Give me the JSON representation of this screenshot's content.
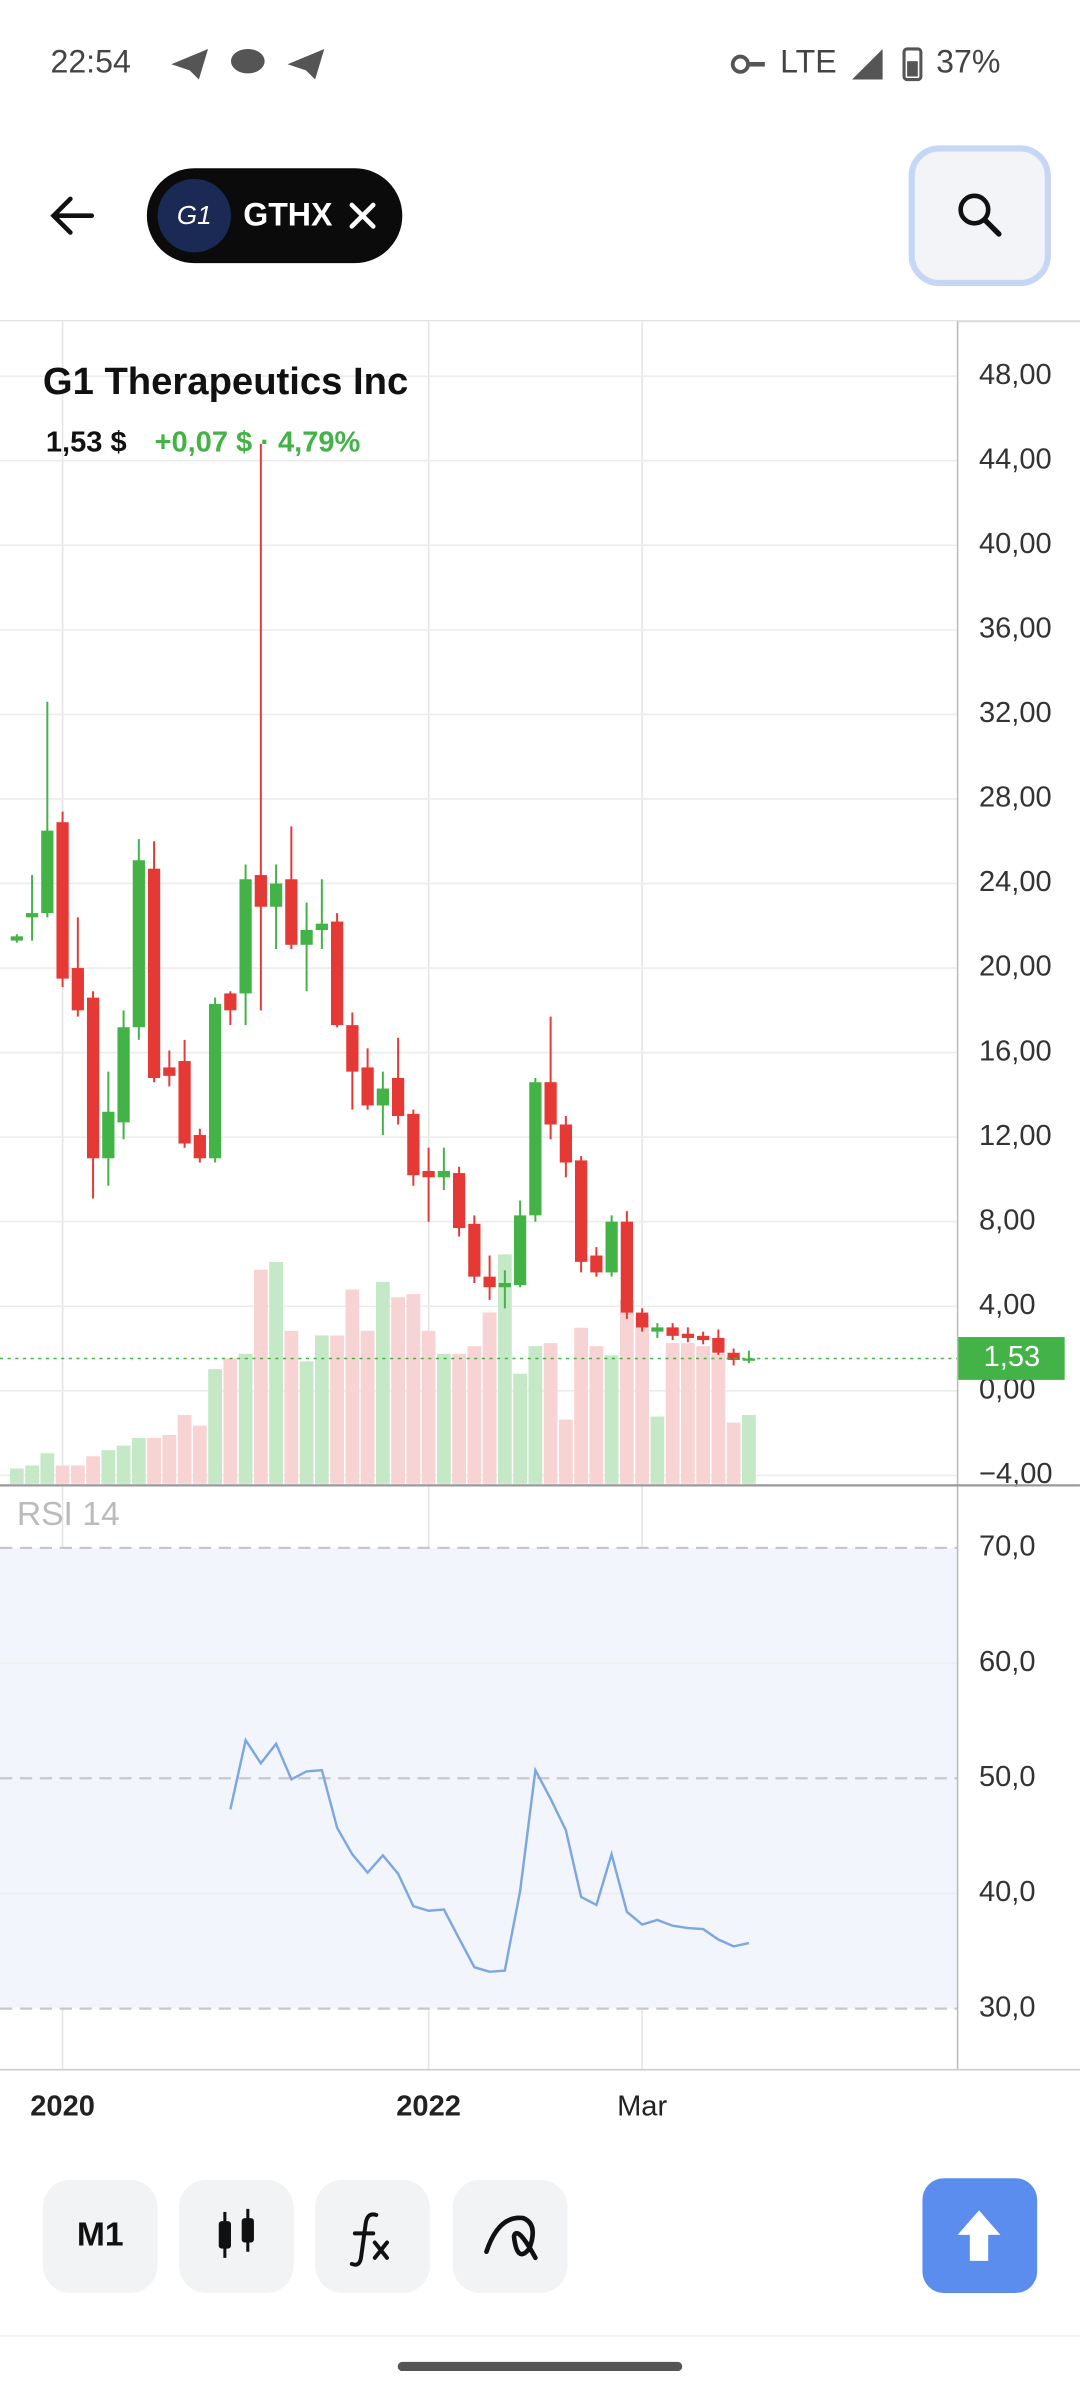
{
  "status_bar": {
    "time": "22:54",
    "network": "LTE",
    "battery": "37%"
  },
  "header": {
    "logo_text": "G1",
    "ticker": "GTHX"
  },
  "toolbar": {
    "period": "M1"
  },
  "chart_data": [
    {
      "type": "candlestick",
      "title": "G1 Therapeutics Inc",
      "price_text": "1,53 $",
      "change_text": "+0,07 $ · 4,79%",
      "categories": [
        null,
        null,
        null,
        "2020",
        null,
        null,
        null,
        null,
        null,
        null,
        null,
        null,
        null,
        null,
        null,
        null,
        null,
        null,
        null,
        null,
        null,
        null,
        null,
        null,
        null,
        null,
        null,
        "2022",
        null,
        null,
        null,
        null,
        null,
        null,
        null,
        null,
        null,
        null,
        null,
        null,
        null,
        "Mar",
        null,
        null,
        null,
        null,
        null,
        null,
        null
      ],
      "open": [
        21.3,
        22.4,
        22.6,
        26.9,
        20.0,
        18.6,
        11.0,
        12.7,
        17.2,
        24.7,
        15.3,
        15.6,
        12.1,
        11.0,
        18.8,
        18.8,
        24.4,
        22.9,
        24.2,
        21.1,
        21.8,
        22.2,
        17.3,
        15.3,
        13.5,
        14.8,
        13.1,
        10.4,
        10.1,
        10.3,
        7.9,
        5.4,
        4.9,
        5.0,
        8.3,
        14.6,
        12.6,
        10.9,
        6.4,
        5.6,
        8.0,
        3.7,
        2.8,
        3.0,
        2.7,
        2.6,
        2.5,
        1.8,
        1.46
      ],
      "high": [
        21.6,
        24.4,
        32.6,
        27.4,
        22.4,
        18.9,
        15.1,
        18.0,
        26.1,
        26.0,
        16.1,
        16.6,
        12.4,
        18.6,
        18.9,
        24.9,
        44.8,
        24.9,
        26.7,
        23.1,
        24.2,
        22.6,
        17.9,
        16.2,
        15.1,
        16.7,
        13.3,
        11.5,
        11.5,
        10.6,
        8.3,
        6.4,
        5.7,
        9.0,
        14.8,
        17.7,
        13.0,
        11.1,
        6.8,
        8.3,
        8.5,
        3.9,
        3.2,
        3.2,
        3.0,
        2.8,
        2.9,
        2.0,
        1.9
      ],
      "low": [
        21.2,
        21.3,
        22.4,
        19.1,
        17.7,
        9.1,
        9.7,
        11.9,
        16.6,
        14.6,
        14.4,
        11.5,
        10.8,
        10.8,
        17.3,
        17.3,
        18.0,
        20.9,
        20.9,
        18.9,
        20.9,
        17.2,
        13.3,
        13.3,
        12.1,
        12.6,
        9.7,
        8.0,
        9.5,
        7.3,
        5.1,
        4.3,
        3.9,
        4.9,
        8.0,
        11.9,
        10.1,
        5.6,
        5.4,
        5.4,
        3.4,
        2.8,
        2.5,
        2.4,
        2.3,
        2.2,
        1.7,
        1.2,
        1.3
      ],
      "close": [
        21.5,
        22.6,
        26.5,
        19.5,
        18.0,
        11.0,
        13.2,
        17.2,
        25.1,
        14.8,
        14.9,
        11.7,
        11.0,
        18.3,
        18.0,
        24.2,
        22.9,
        24.0,
        21.1,
        21.8,
        22.1,
        17.3,
        15.1,
        13.5,
        14.3,
        13.0,
        10.2,
        10.1,
        10.4,
        7.7,
        5.4,
        4.9,
        5.1,
        8.3,
        14.6,
        12.6,
        10.8,
        6.1,
        5.6,
        8.0,
        3.7,
        3.0,
        3.0,
        2.6,
        2.5,
        2.4,
        1.8,
        1.46,
        1.53
      ],
      "volume": [
        10,
        12,
        20,
        12,
        12,
        18,
        22,
        25,
        30,
        30,
        32,
        45,
        38,
        75,
        82,
        85,
        140,
        145,
        100,
        80,
        97,
        97,
        127,
        100,
        132,
        122,
        124,
        100,
        85,
        85,
        90,
        112,
        150,
        72,
        90,
        92,
        42,
        102,
        90,
        84,
        120,
        110,
        44,
        92,
        92,
        90,
        85,
        40,
        45
      ],
      "up_color": "#43b347",
      "down_color": "#e53935",
      "up_volume_color": "#c5e8c6",
      "down_volume_color": "#f8d3d3",
      "ylim": [
        -4.4,
        50.6
      ],
      "yticks": [
        {
          "value": 48,
          "label": "48,00"
        },
        {
          "value": 44,
          "label": "44,00"
        },
        {
          "value": 40,
          "label": "40,00"
        },
        {
          "value": 36,
          "label": "36,00"
        },
        {
          "value": 32,
          "label": "32,00"
        },
        {
          "value": 28,
          "label": "28,00"
        },
        {
          "value": 24,
          "label": "24,00"
        },
        {
          "value": 20,
          "label": "20,00"
        },
        {
          "value": 16,
          "label": "16,00"
        },
        {
          "value": 12,
          "label": "12,00"
        },
        {
          "value": 8,
          "label": "8,00"
        },
        {
          "value": 4,
          "label": "4,00"
        },
        {
          "value": 0,
          "label": "0,00"
        },
        {
          "value": -4,
          "label": "−4,00"
        }
      ],
      "last_price": {
        "value": 1.53,
        "label": "1,53"
      },
      "grid": true
    },
    {
      "type": "line",
      "title": "RSI 14",
      "color": "#7ea6e0",
      "values": [
        null,
        null,
        null,
        null,
        null,
        null,
        null,
        null,
        null,
        null,
        null,
        null,
        null,
        null,
        47.3,
        53.3,
        51.3,
        53.0,
        49.9,
        50.6,
        50.7,
        45.7,
        43.4,
        41.8,
        43.3,
        41.7,
        38.9,
        38.5,
        38.6,
        36.1,
        33.6,
        33.2,
        33.3,
        40.2,
        50.7,
        48.2,
        45.5,
        39.7,
        39.0,
        43.4,
        38.4,
        37.3,
        37.7,
        37.2,
        37.0,
        36.9,
        36.0,
        35.4,
        35.7
      ],
      "ylim": [
        24.7,
        74.9
      ],
      "yticks": [
        {
          "value": 70,
          "label": "70,0"
        },
        {
          "value": 60,
          "label": "60,0"
        },
        {
          "value": 50,
          "label": "50,0"
        },
        {
          "value": 40,
          "label": "40,0"
        },
        {
          "value": 30,
          "label": "30,0"
        }
      ],
      "grid": true
    }
  ]
}
